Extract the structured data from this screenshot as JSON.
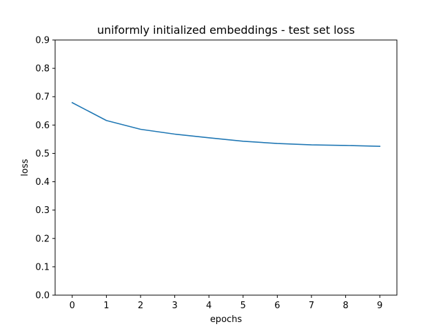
{
  "chart_data": {
    "type": "line",
    "title": "uniformly initialized embeddings - test set loss",
    "xlabel": "epochs",
    "ylabel": "loss",
    "xlim": [
      -0.5,
      9.5
    ],
    "ylim": [
      0.0,
      0.9
    ],
    "xticks": [
      0,
      1,
      2,
      3,
      4,
      5,
      6,
      7,
      8,
      9
    ],
    "yticks": [
      0.0,
      0.1,
      0.2,
      0.3,
      0.4,
      0.5,
      0.6,
      0.7,
      0.8,
      0.9
    ],
    "ytick_labels": [
      "0.0",
      "0.1",
      "0.2",
      "0.3",
      "0.4",
      "0.5",
      "0.6",
      "0.7",
      "0.8",
      "0.9"
    ],
    "grid": false,
    "series": [
      {
        "color": "#1f77b4",
        "x": [
          0,
          1,
          2,
          3,
          4,
          5,
          6,
          7,
          8,
          9
        ],
        "y": [
          0.679,
          0.616,
          0.585,
          0.568,
          0.555,
          0.543,
          0.535,
          0.53,
          0.528,
          0.525
        ]
      }
    ]
  }
}
